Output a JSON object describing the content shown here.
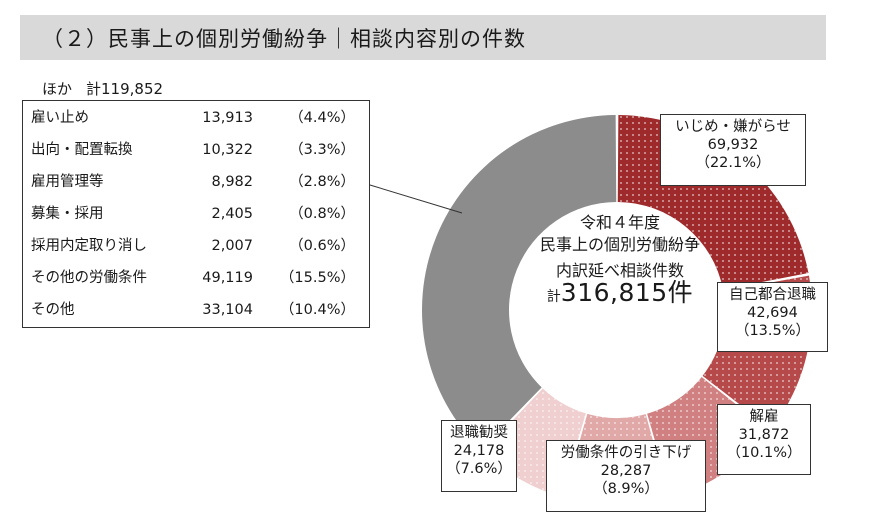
{
  "header": {
    "title": "（２）民事上の個別労働紛争｜相談内容別の件数"
  },
  "other_box": {
    "caption_prefix": "ほか",
    "caption_total": "計119,852",
    "rows": [
      {
        "name": "雇い止め",
        "value": "13,913",
        "pct": "（4.4%）"
      },
      {
        "name": "出向・配置転換",
        "value": "10,322",
        "pct": "（3.3%）"
      },
      {
        "name": "雇用管理等",
        "value": "8,982",
        "pct": "（2.8%）"
      },
      {
        "name": "募集・採用",
        "value": "2,405",
        "pct": "（0.8%）"
      },
      {
        "name": "採用内定取り消し",
        "value": "2,007",
        "pct": "（0.6%）"
      },
      {
        "name": "その他の労働条件",
        "value": "49,119",
        "pct": "（15.5%）"
      },
      {
        "name": "その他",
        "value": "33,104",
        "pct": "（10.4%）"
      }
    ]
  },
  "center": {
    "line1": "令和４年度",
    "line2": "民事上の個別労働紛争",
    "line3": "内訳延べ相談件数",
    "total_prefix": "計",
    "total_value": "316,815件"
  },
  "chart_data": {
    "type": "pie",
    "total": 316815,
    "slices": [
      {
        "name": "いじめ・嫌がらせ",
        "value": 69932,
        "pct": "（22.1%）",
        "value_label": "69,932",
        "color": "#9e2a2b"
      },
      {
        "name": "自己都合退職",
        "value": 42694,
        "pct": "（13.5%）",
        "value_label": "42,694",
        "color": "#b64a4a"
      },
      {
        "name": "解雇",
        "value": 31872,
        "pct": "（10.1%）",
        "value_label": "31,872",
        "color": "#d08080"
      },
      {
        "name": "労働条件の引き下げ",
        "value": 28287,
        "pct": "（8.9%）",
        "value_label": "28,287",
        "color": "#e1a8a8"
      },
      {
        "name": "退職勧奨",
        "value": 24178,
        "pct": "（7.6%）",
        "value_label": "24,178",
        "color": "#efcfcf"
      },
      {
        "name": "ほか",
        "value": 119852,
        "color": "#8c8c8c"
      }
    ]
  }
}
